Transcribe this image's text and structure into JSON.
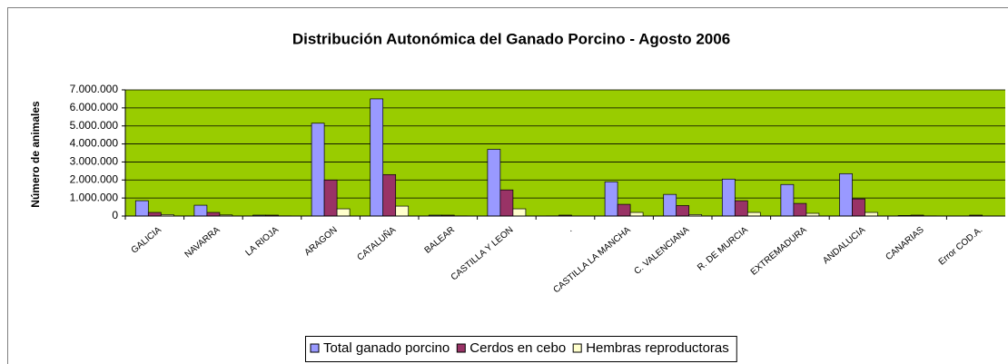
{
  "chart_data": {
    "type": "bar",
    "title": "Distribución Autonómica del Ganado Porcino - Agosto 2006",
    "y_label": "Número de animales",
    "categories": [
      "GALICIA",
      "NAVARRA",
      "LA RIOJA",
      "ARAGON",
      "CATALUÑA",
      "BALEAR",
      "CASTILLA Y LEON",
      ".",
      "CASTILLA LA MANCHA",
      "C. VALENCIANA",
      "R. DE MURCIA",
      "EXTREMADURA",
      "ANDALUCIA",
      "CANARIAS",
      "Error COD.A."
    ],
    "series": [
      {
        "name": "Total ganado porcino",
        "color": "#9999ff",
        "values": [
          850000,
          600000,
          50000,
          5150000,
          6500000,
          50000,
          3700000,
          10000,
          1900000,
          1200000,
          2050000,
          1750000,
          2350000,
          30000,
          0
        ]
      },
      {
        "name": "Cerdos en cebo",
        "color": "#993366",
        "values": [
          200000,
          200000,
          50000,
          2000000,
          2300000,
          50000,
          1450000,
          50000,
          650000,
          580000,
          850000,
          700000,
          950000,
          50000,
          50000
        ]
      },
      {
        "name": "Hembras reproductoras",
        "color": "#ffffcc",
        "values": [
          80000,
          60000,
          10000,
          400000,
          550000,
          10000,
          400000,
          5000,
          200000,
          80000,
          200000,
          150000,
          200000,
          10000,
          0
        ]
      }
    ],
    "ylim": [
      0,
      7000000
    ],
    "yticks": [
      0,
      {
        "value": 1000000,
        "label": "1.000.000"
      },
      {
        "value": 2000000,
        "label": "2.000.000"
      },
      {
        "value": 3000000,
        "label": "3.000.000"
      },
      {
        "value": 4000000,
        "label": "4.000.000"
      },
      {
        "value": 5000000,
        "label": "5.000.000"
      },
      {
        "value": 6000000,
        "label": "6.000.000"
      },
      {
        "value": 7000000,
        "label": "7.000.000"
      }
    ],
    "grid": true,
    "plot_background": "#99cc00",
    "legend": "bottom"
  }
}
